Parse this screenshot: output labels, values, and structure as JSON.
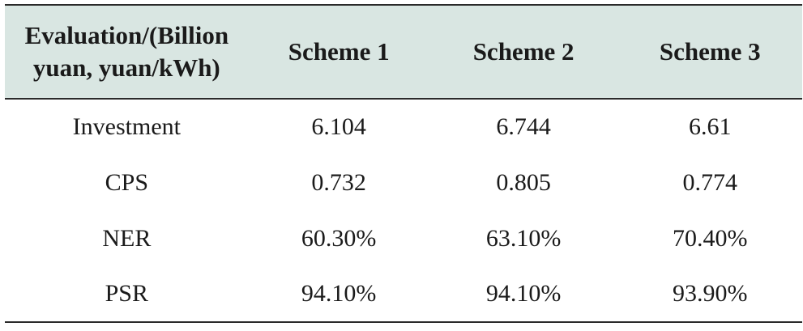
{
  "table": {
    "headers": [
      {
        "line1": "Evaluation/(Billion",
        "line2": "yuan, yuan/kWh)"
      },
      {
        "line1": "Scheme 1"
      },
      {
        "line1": "Scheme 2"
      },
      {
        "line1": "Scheme 3"
      }
    ],
    "rows": [
      {
        "label": "Investment",
        "values": [
          "6.104",
          "6.744",
          "6.61"
        ]
      },
      {
        "label": "CPS",
        "values": [
          "0.732",
          "0.805",
          "0.774"
        ]
      },
      {
        "label": "NER",
        "values": [
          "60.30%",
          "63.10%",
          "70.40%"
        ]
      },
      {
        "label": "PSR",
        "values": [
          "94.10%",
          "94.10%",
          "93.90%"
        ]
      }
    ]
  },
  "colors": {
    "header_background": "#d9e6e2",
    "rule": "#2a2a2a",
    "text": "#1a1a1a"
  }
}
